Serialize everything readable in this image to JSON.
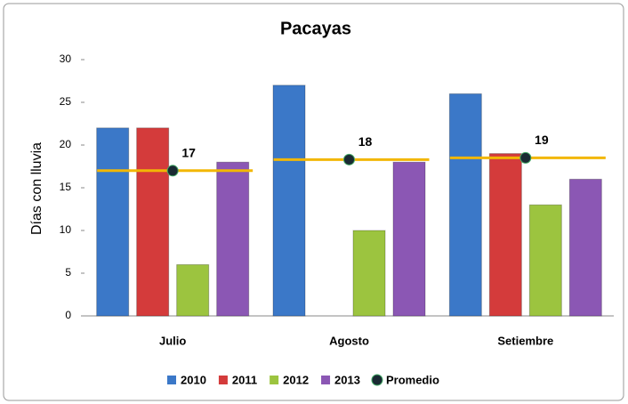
{
  "chart_data": {
    "type": "bar",
    "title": "Pacayas",
    "y_label": "Días con lluvia",
    "categories": [
      "Julio",
      "Agosto",
      "Setiembre"
    ],
    "series": [
      {
        "name": "2010",
        "color": "#3b78c8",
        "values": [
          22,
          27,
          26
        ]
      },
      {
        "name": "2011",
        "color": "#d43b3b",
        "values": [
          22,
          null,
          19
        ]
      },
      {
        "name": "2012",
        "color": "#9cc43f",
        "values": [
          6,
          10,
          13
        ]
      },
      {
        "name": "2013",
        "color": "#8b57b4",
        "values": [
          18,
          18,
          16
        ]
      },
      {
        "name": "Promedio",
        "type": "scatter",
        "color": "#1a2a33",
        "line_color": "#f2b705",
        "values": [
          17,
          18.3,
          18.5
        ],
        "value_labels": [
          "17",
          "18",
          "19"
        ]
      }
    ],
    "ylim": [
      0,
      30
    ],
    "yticks": [
      0,
      5,
      10,
      15,
      20,
      25,
      30
    ],
    "grid": false,
    "legend": "bottom"
  }
}
